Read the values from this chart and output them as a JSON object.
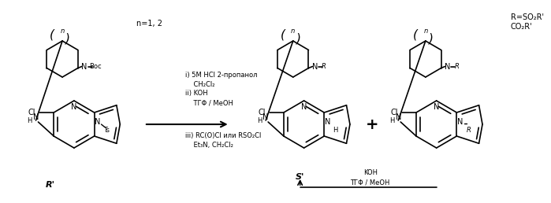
{
  "background_color": "#ffffff",
  "figsize": [
    6.99,
    2.58
  ],
  "dpi": 100,
  "n_label": "n=1, 2",
  "R_label": "R=SO₂R'\nCO₂R'",
  "arrow_conditions_1": "i) 5M HCl 2-пропанол",
  "arrow_conditions_2": "    CH₂Cl₂",
  "arrow_conditions_3": "ii) KOH",
  "arrow_conditions_4": "    ТГΦ / MeOH",
  "arrow_conditions_5": "iii) RC(O)Cl или RSO₂Cl",
  "arrow_conditions_6": "    Et₃N, CH₂Cl₂",
  "bottom_conditions_1": "KOH",
  "bottom_conditions_2": "ТГΦ / MeOH",
  "font_size_main": 7.0,
  "font_size_small": 6.0,
  "font_size_label": 8.0
}
